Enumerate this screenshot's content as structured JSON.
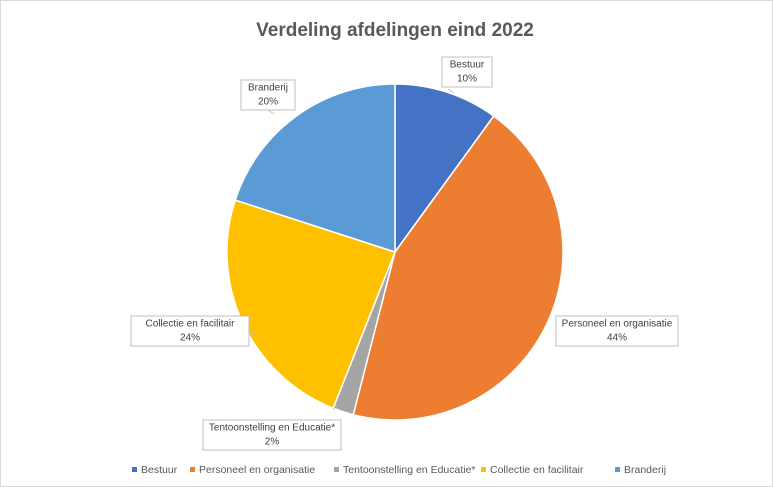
{
  "chart_data": {
    "type": "pie",
    "title": "Verdeling afdelingen eind 2022",
    "categories": [
      "Bestuur",
      "Personeel en organisatie",
      "Tentoonstelling en Educatie*",
      "Collectie en facilitair",
      "Branderij"
    ],
    "values": [
      10,
      44,
      2,
      24,
      20
    ],
    "value_labels": [
      "10%",
      "44%",
      "2%",
      "24%",
      "20%"
    ],
    "colors": [
      "#4472c4",
      "#ed7d31",
      "#a5a5a5",
      "#ffc000",
      "#5b9bd5"
    ],
    "legend": "bottom"
  }
}
